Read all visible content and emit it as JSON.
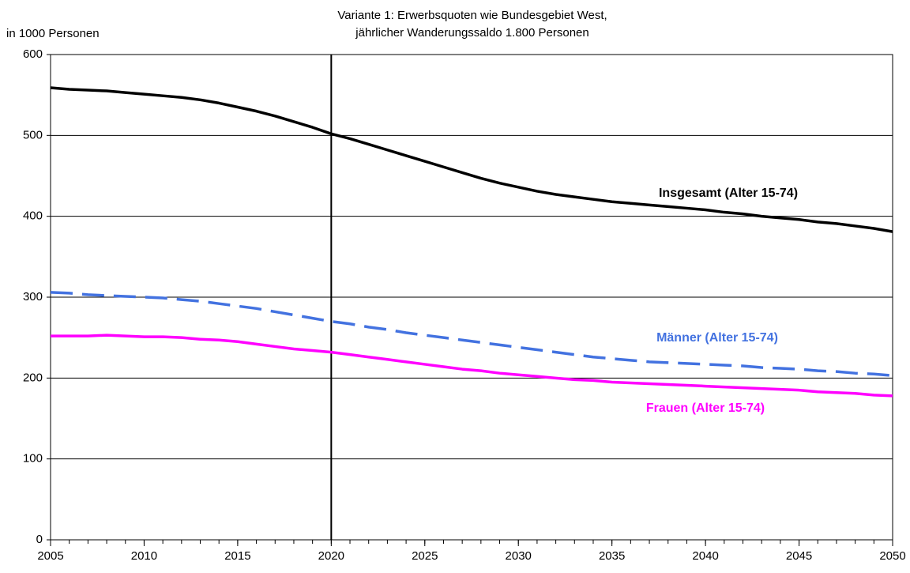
{
  "chart_data": {
    "type": "line",
    "title": [
      "Variante 1: Erwerbsquoten wie Bundesgebiet West,",
      "jährlicher Wanderungssaldo 1.800 Personen"
    ],
    "y_label": "in 1000 Personen",
    "x": [
      2005,
      2006,
      2007,
      2008,
      2009,
      2010,
      2011,
      2012,
      2013,
      2014,
      2015,
      2016,
      2017,
      2018,
      2019,
      2020,
      2021,
      2022,
      2023,
      2024,
      2025,
      2026,
      2027,
      2028,
      2029,
      2030,
      2031,
      2032,
      2033,
      2034,
      2035,
      2036,
      2037,
      2038,
      2039,
      2040,
      2041,
      2042,
      2043,
      2044,
      2045,
      2046,
      2047,
      2048,
      2049,
      2050
    ],
    "series": [
      {
        "name": "Insgesamt (Alter 15-74)",
        "color": "#000000",
        "dashed": false,
        "values": [
          559,
          557,
          556,
          555,
          553,
          551,
          549,
          547,
          544,
          540,
          535,
          530,
          524,
          517,
          510,
          502,
          496,
          489,
          482,
          475,
          468,
          461,
          454,
          447,
          441,
          436,
          431,
          427,
          424,
          421,
          418,
          416,
          414,
          412,
          410,
          408,
          405,
          403,
          400,
          398,
          396,
          393,
          391,
          388,
          385,
          381
        ]
      },
      {
        "name": "Männer (Alter 15-74)",
        "color": "#4372e0",
        "dashed": true,
        "values": [
          306,
          305,
          303,
          302,
          301,
          300,
          299,
          297,
          295,
          292,
          289,
          286,
          282,
          278,
          274,
          270,
          267,
          263,
          260,
          256,
          253,
          250,
          247,
          244,
          241,
          238,
          235,
          232,
          229,
          226,
          224,
          222,
          220,
          219,
          218,
          217,
          216,
          215,
          213,
          212,
          211,
          209,
          208,
          206,
          205,
          203
        ]
      },
      {
        "name": "Frauen (Alter 15-74)",
        "color": "#ff00ff",
        "dashed": false,
        "values": [
          252,
          252,
          252,
          253,
          252,
          251,
          251,
          250,
          248,
          247,
          245,
          242,
          239,
          236,
          234,
          232,
          229,
          226,
          223,
          220,
          217,
          214,
          211,
          209,
          206,
          204,
          202,
          200,
          198,
          197,
          195,
          194,
          193,
          192,
          191,
          190,
          189,
          188,
          187,
          186,
          185,
          183,
          182,
          181,
          179,
          178
        ]
      }
    ],
    "xlim": [
      2005,
      2050
    ],
    "xticks": [
      2005,
      2010,
      2015,
      2020,
      2025,
      2030,
      2035,
      2040,
      2045,
      2050
    ],
    "ylim": [
      0,
      600
    ],
    "yticks": [
      0,
      100,
      200,
      300,
      400,
      500,
      600
    ],
    "grid": true,
    "vline": 2020
  }
}
